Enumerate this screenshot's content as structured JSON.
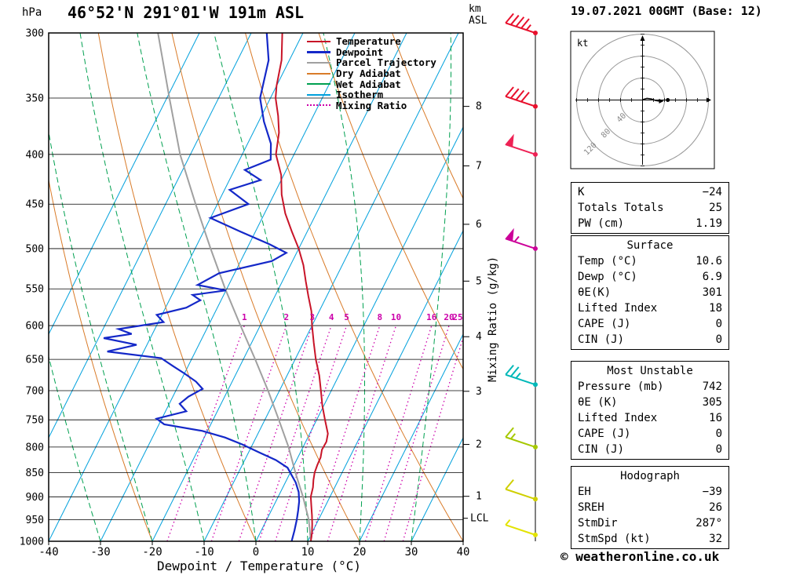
{
  "header": {
    "pressure_unit": "hPa",
    "station_title": "46°52'N 291°01'W 191m ASL",
    "altitude_unit": "km\nASL",
    "run_title": "19.07.2021 00GMT (Base: 12)"
  },
  "chart_data": {
    "type": "skewt-log-p-sounding",
    "x_axis": {
      "label": "Dewpoint / Temperature (°C)",
      "min": -40,
      "max": 40,
      "ticks": [
        -40,
        -30,
        -20,
        -10,
        0,
        10,
        20,
        30,
        40
      ]
    },
    "y_axis": {
      "unit": "hPa",
      "min": 300,
      "max": 1000,
      "ticks": [
        300,
        350,
        400,
        450,
        500,
        550,
        600,
        650,
        700,
        750,
        800,
        850,
        900,
        950,
        1000
      ]
    },
    "km_axis": {
      "ticks": [
        {
          "km": 8,
          "p": 357
        },
        {
          "km": 7,
          "p": 411
        },
        {
          "km": 6,
          "p": 472
        },
        {
          "km": 5,
          "p": 540
        },
        {
          "km": 4,
          "p": 616
        },
        {
          "km": 3,
          "p": 701
        },
        {
          "km": 2,
          "p": 795
        },
        {
          "km": 1,
          "p": 899
        }
      ]
    },
    "lcl": {
      "label": "LCL",
      "pressure": 947
    },
    "mixing_ratio": {
      "axis_label": "Mixing Ratio (g/kg)",
      "values": [
        1,
        2,
        3,
        4,
        5,
        8,
        10,
        16,
        20,
        25
      ]
    },
    "legend": [
      {
        "label": "Temperature",
        "color": "#c81428",
        "style": "solid"
      },
      {
        "label": "Dewpoint",
        "color": "#1428c8",
        "style": "solid"
      },
      {
        "label": "Parcel Trajectory",
        "color": "#a0a0a0",
        "style": "solid"
      },
      {
        "label": "Dry Adiabat",
        "color": "#d97b29",
        "style": "solid"
      },
      {
        "label": "Wet Adiabat",
        "color": "#00a050",
        "style": "solid"
      },
      {
        "label": "Isotherm",
        "color": "#00a0dc",
        "style": "solid"
      },
      {
        "label": "Mixing Ratio",
        "color": "#cc00aa",
        "style": "dotted"
      }
    ],
    "background": {
      "isotherm_step": 10,
      "dry_adiabats": [
        -40,
        -20,
        0,
        20,
        40,
        60,
        80,
        100,
        120
      ],
      "wet_adiabats": [
        -60,
        -50,
        -40,
        -30,
        -20,
        -10,
        0,
        10,
        20,
        30,
        40
      ],
      "colors": {
        "isotherm": "#00a0dc",
        "dry_adiabat": "#d97b29",
        "wet_adiabat": "#00a050",
        "mixing_ratio": "#cc00aa",
        "grid": "#000000"
      }
    },
    "series": {
      "temperature": {
        "color": "#c81428",
        "points": [
          [
            300,
            -44
          ],
          [
            320,
            -41.5
          ],
          [
            340,
            -40
          ],
          [
            350,
            -39
          ],
          [
            365,
            -36.8
          ],
          [
            380,
            -35
          ],
          [
            400,
            -33.5
          ],
          [
            420,
            -30.5
          ],
          [
            440,
            -28.5
          ],
          [
            460,
            -26
          ],
          [
            480,
            -23
          ],
          [
            500,
            -20
          ],
          [
            520,
            -17.5
          ],
          [
            540,
            -15.5
          ],
          [
            560,
            -13.5
          ],
          [
            580,
            -11.5
          ],
          [
            600,
            -10
          ],
          [
            625,
            -8
          ],
          [
            650,
            -6
          ],
          [
            675,
            -3.8
          ],
          [
            700,
            -2
          ],
          [
            725,
            -0.3
          ],
          [
            750,
            1.6
          ],
          [
            775,
            3.5
          ],
          [
            790,
            4
          ],
          [
            805,
            3.9
          ],
          [
            820,
            4.4
          ],
          [
            835,
            4.5
          ],
          [
            850,
            4.7
          ],
          [
            865,
            5.2
          ],
          [
            880,
            5.8
          ],
          [
            900,
            6.3
          ],
          [
            920,
            7.3
          ],
          [
            940,
            8.3
          ],
          [
            960,
            9.2
          ],
          [
            980,
            10
          ],
          [
            1000,
            10.6
          ]
        ]
      },
      "dewpoint": {
        "color": "#1428c8",
        "points": [
          [
            300,
            -47
          ],
          [
            320,
            -44
          ],
          [
            350,
            -42
          ],
          [
            370,
            -39
          ],
          [
            390,
            -35.5
          ],
          [
            405,
            -34
          ],
          [
            415,
            -38
          ],
          [
            425,
            -34
          ],
          [
            435,
            -39
          ],
          [
            450,
            -34
          ],
          [
            465,
            -40
          ],
          [
            480,
            -33
          ],
          [
            495,
            -26
          ],
          [
            505,
            -22
          ],
          [
            515,
            -24
          ],
          [
            530,
            -33
          ],
          [
            545,
            -36
          ],
          [
            552,
            -30
          ],
          [
            558,
            -36
          ],
          [
            565,
            -34
          ],
          [
            575,
            -36
          ],
          [
            585,
            -41
          ],
          [
            595,
            -39
          ],
          [
            605,
            -47
          ],
          [
            612,
            -44
          ],
          [
            618,
            -49
          ],
          [
            628,
            -42
          ],
          [
            638,
            -47
          ],
          [
            648,
            -36
          ],
          [
            660,
            -33
          ],
          [
            672,
            -30
          ],
          [
            685,
            -27
          ],
          [
            697,
            -25
          ],
          [
            710,
            -27
          ],
          [
            722,
            -28
          ],
          [
            735,
            -26
          ],
          [
            748,
            -31
          ],
          [
            758,
            -29
          ],
          [
            770,
            -21
          ],
          [
            782,
            -16
          ],
          [
            795,
            -12
          ],
          [
            810,
            -8
          ],
          [
            825,
            -4
          ],
          [
            840,
            -1
          ],
          [
            855,
            0.5
          ],
          [
            870,
            2
          ],
          [
            890,
            3.5
          ],
          [
            910,
            4.5
          ],
          [
            930,
            5.2
          ],
          [
            950,
            5.8
          ],
          [
            975,
            6.4
          ],
          [
            1000,
            6.9
          ]
        ]
      },
      "parcel": {
        "color": "#a0a0a0",
        "points": [
          [
            1000,
            10.6
          ],
          [
            950,
            8.1
          ],
          [
            900,
            4.8
          ],
          [
            850,
            1.0
          ],
          [
            800,
            -2.8
          ],
          [
            750,
            -7.3
          ],
          [
            700,
            -12.2
          ],
          [
            650,
            -17.7
          ],
          [
            600,
            -23.8
          ],
          [
            550,
            -30.3
          ],
          [
            500,
            -37
          ],
          [
            450,
            -44.2
          ],
          [
            400,
            -52
          ],
          [
            350,
            -59.5
          ],
          [
            300,
            -68
          ]
        ]
      }
    },
    "wind_barbs": [
      {
        "pressure": 300,
        "color": "#e8112d",
        "speed": 45
      },
      {
        "pressure": 357,
        "color": "#e8112d",
        "speed": 40
      },
      {
        "pressure": 400,
        "color": "#ee2255",
        "speed": 50
      },
      {
        "pressure": 500,
        "color": "#cc0099",
        "speed": 55
      },
      {
        "pressure": 690,
        "color": "#00b8b8",
        "speed": 25
      },
      {
        "pressure": 800,
        "color": "#a6c800",
        "speed": 15
      },
      {
        "pressure": 905,
        "color": "#cfcf00",
        "speed": 10
      },
      {
        "pressure": 985,
        "color": "#e3e300",
        "speed": 5
      }
    ]
  },
  "hodograph": {
    "unit_label": "kt",
    "rings": [
      40,
      80,
      120
    ],
    "trace": [
      [
        1,
        1
      ],
      [
        8,
        3
      ],
      [
        16,
        2
      ],
      [
        24,
        -1
      ],
      [
        30,
        -2
      ]
    ],
    "storm_motion": [
      46,
      0
    ]
  },
  "tables": [
    {
      "name": "indices-table",
      "title": null,
      "rows": [
        [
          "K",
          "−24"
        ],
        [
          "Totals Totals",
          "25"
        ],
        [
          "PW (cm)",
          "1.19"
        ]
      ]
    },
    {
      "name": "surface-table",
      "title": "Surface",
      "rows": [
        [
          "Temp (°C)",
          "10.6"
        ],
        [
          "Dewp (°C)",
          "6.9"
        ],
        [
          "θE(K)",
          "301"
        ],
        [
          "Lifted Index",
          "18"
        ],
        [
          "CAPE (J)",
          "0"
        ],
        [
          "CIN (J)",
          "0"
        ]
      ]
    },
    {
      "name": "most-unstable-table",
      "title": "Most Unstable",
      "rows": [
        [
          "Pressure (mb)",
          "742"
        ],
        [
          "θE (K)",
          "305"
        ],
        [
          "Lifted Index",
          "16"
        ],
        [
          "CAPE (J)",
          "0"
        ],
        [
          "CIN (J)",
          "0"
        ]
      ]
    },
    {
      "name": "hodograph-table",
      "title": "Hodograph",
      "rows": [
        [
          "EH",
          "−39"
        ],
        [
          "SREH",
          "26"
        ],
        [
          "StmDir",
          "287°"
        ],
        [
          "StmSpd (kt)",
          "32"
        ]
      ]
    }
  ],
  "footer": {
    "copyright": "© weatheronline.co.uk"
  }
}
